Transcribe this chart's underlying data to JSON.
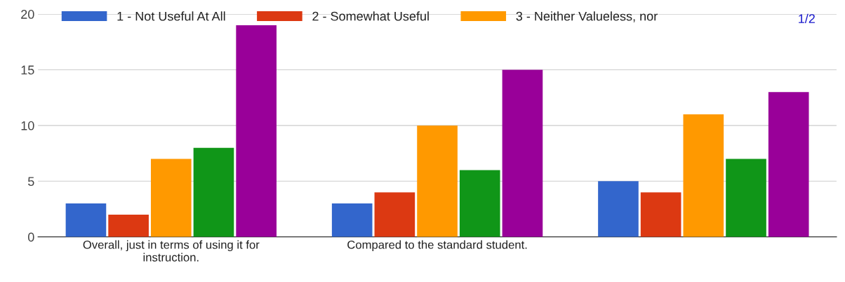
{
  "chart_data": {
    "type": "bar",
    "categories": [
      "Overall, just in terms of using it for\ninstruction.",
      "Compared to the standard student.",
      null
    ],
    "series": [
      {
        "name": "1 - Not Useful At All",
        "color": "#3366cc",
        "values": [
          3,
          3,
          5
        ]
      },
      {
        "name": "2 - Somewhat Useful",
        "color": "#dc3912",
        "values": [
          2,
          4,
          4
        ]
      },
      {
        "name": "3 - Neither Valueless, nor",
        "color": "#ff9900",
        "values": [
          7,
          10,
          11
        ]
      },
      {
        "color": "#109618",
        "values": [
          8,
          6,
          7
        ]
      },
      {
        "color": "#990099",
        "values": [
          19,
          15,
          13
        ]
      }
    ],
    "ylim": [
      0,
      20
    ],
    "yticks": [
      0,
      5,
      10,
      15,
      20
    ],
    "grid": "y",
    "legend": "top",
    "annotations": [
      "1/2"
    ]
  }
}
